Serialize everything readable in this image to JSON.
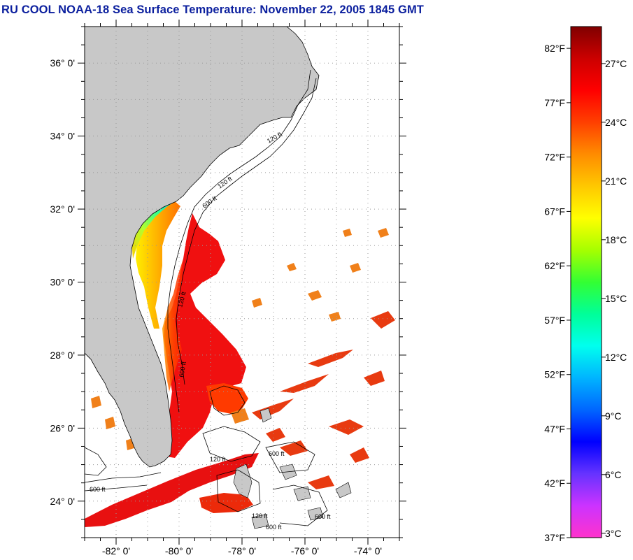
{
  "title": "RU COOL  NOAA-18  Sea Surface Temperature:  November 22, 2005 1845 GMT",
  "map": {
    "lat_range": [
      23.0,
      37.0
    ],
    "lon_range": [
      -83.0,
      -73.0
    ],
    "lat_ticks": [
      {
        "value": 36,
        "label": "36° 0'"
      },
      {
        "value": 34,
        "label": "34° 0'"
      },
      {
        "value": 32,
        "label": "32° 0'"
      },
      {
        "value": 30,
        "label": "30° 0'"
      },
      {
        "value": 28,
        "label": "28° 0'"
      },
      {
        "value": 26,
        "label": "26° 0'"
      },
      {
        "value": 24,
        "label": "24° 0'"
      }
    ],
    "lon_ticks": [
      {
        "value": -82,
        "label": "-82° 0'"
      },
      {
        "value": -80,
        "label": "-80° 0'"
      },
      {
        "value": -78,
        "label": "-78° 0'"
      },
      {
        "value": -76,
        "label": "-76° 0'"
      },
      {
        "value": -74,
        "label": "-74° 0'"
      }
    ],
    "land_color": "#c8c8c8",
    "grid": "dotted",
    "isobath_labels": [
      "120 ft",
      "600 ft"
    ]
  },
  "colorbar": {
    "min_f": 37,
    "max_f": 84,
    "fahrenheit_labels": [
      "82°F",
      "77°F",
      "72°F",
      "67°F",
      "62°F",
      "57°F",
      "52°F",
      "47°F",
      "42°F",
      "37°F"
    ],
    "celsius_labels": [
      "27°C",
      "24°C",
      "21°C",
      "18°C",
      "15°C",
      "12°C",
      "9°C",
      "6°C",
      "3°C"
    ],
    "colors": [
      "#ff33cc",
      "#cc33ff",
      "#6633ff",
      "#0000ff",
      "#0066ff",
      "#00b4ff",
      "#00ffee",
      "#00ff99",
      "#33ff33",
      "#a6ff00",
      "#ffff00",
      "#ffc800",
      "#ff8c00",
      "#ff4000",
      "#ff0000",
      "#cc0000",
      "#800000"
    ]
  }
}
